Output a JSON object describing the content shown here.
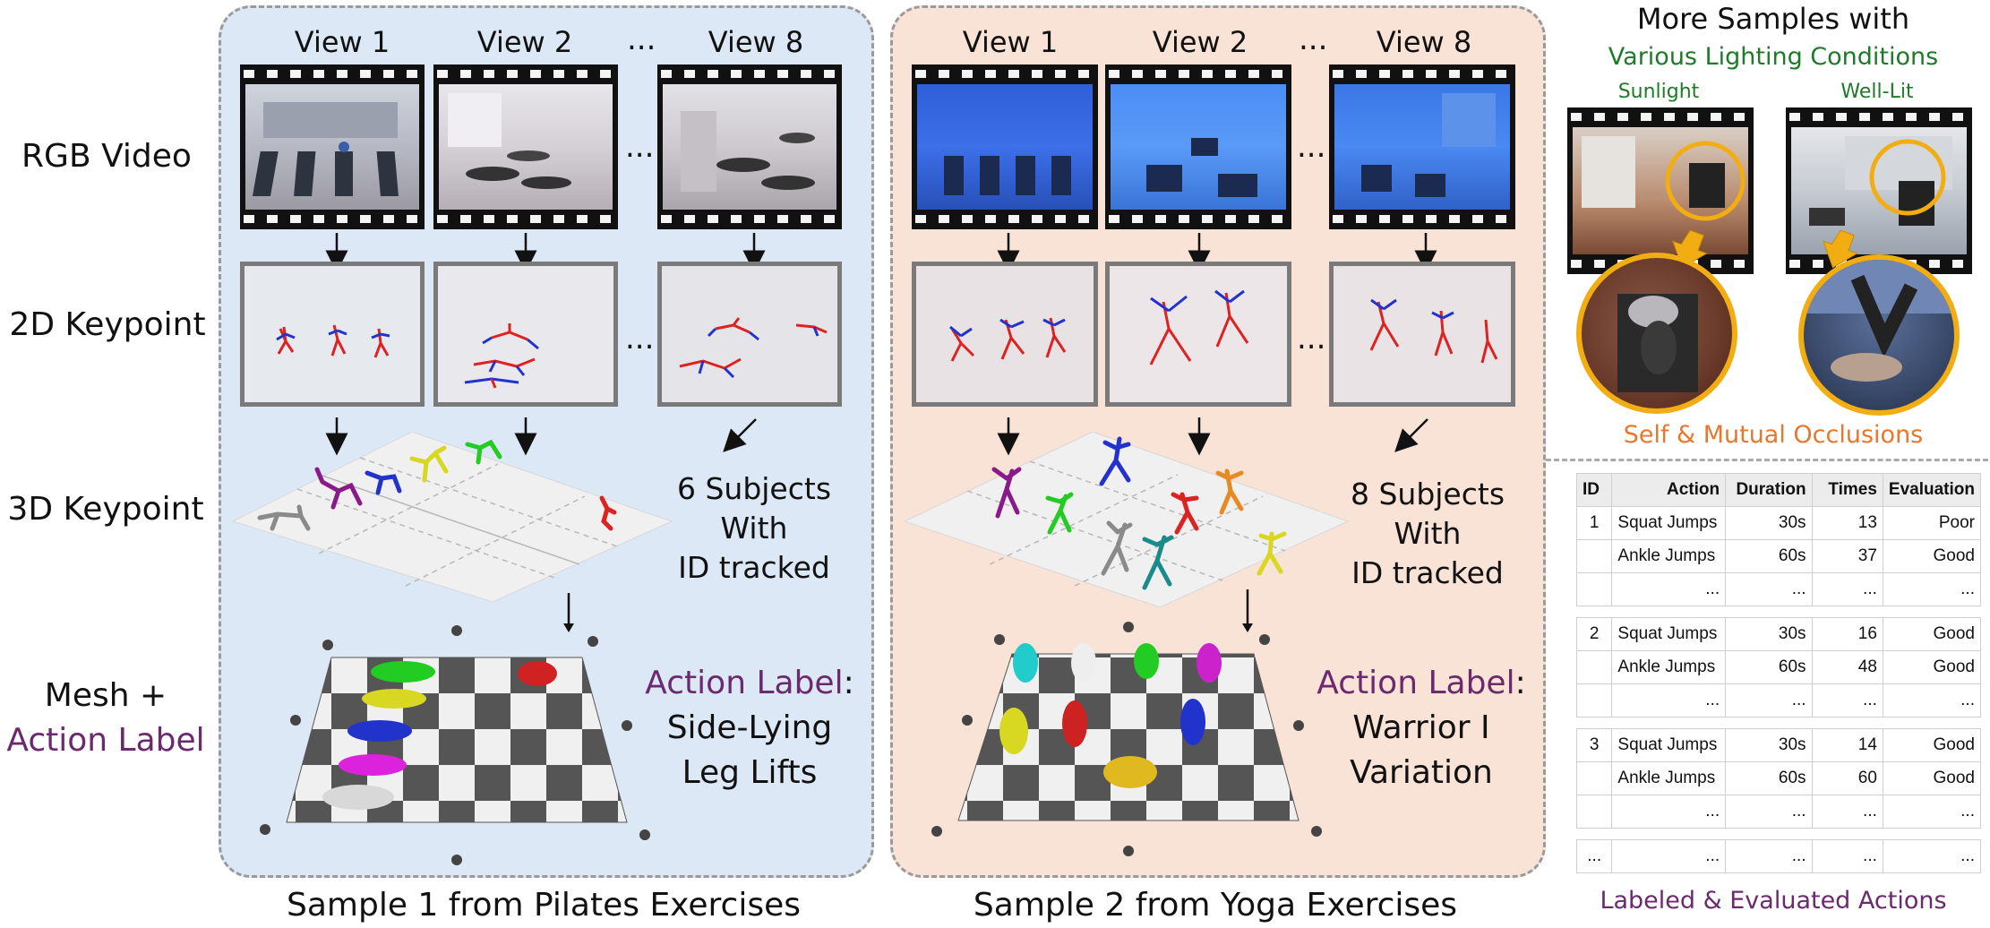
{
  "row_labels": {
    "rgb": "RGB Video",
    "kp2d": "2D Keypoint",
    "kp3d": "3D Keypoint",
    "mesh_line1": "Mesh +",
    "mesh_line2": "Action Label"
  },
  "views": [
    "View 1",
    "View 2",
    "View 8"
  ],
  "ellipsis": "...",
  "sample1": {
    "caption": "Sample 1 from Pilates Exercises",
    "subjects": [
      "6 Subjects",
      "With",
      "ID tracked"
    ],
    "action_label_prefix": "Action Label",
    "action_label_colon": ":",
    "action_line1": "Side-Lying",
    "action_line2": "Leg Lifts"
  },
  "sample2": {
    "caption": "Sample 2 from Yoga Exercises",
    "subjects": [
      "8 Subjects",
      "With",
      "ID tracked"
    ],
    "action_label_prefix": "Action Label",
    "action_label_colon": ":",
    "action_line1": "Warrior I",
    "action_line2": "Variation"
  },
  "more_samples": {
    "title": "More Samples with",
    "subtitle": "Various Lighting Conditions",
    "left_label": "Sunlight",
    "right_label": "Well-Lit",
    "occlusion_caption": "Self & Mutual Occlusions"
  },
  "table": {
    "headers": [
      "ID",
      "Action",
      "Duration",
      "Times",
      "Evaluation"
    ],
    "groups": [
      {
        "rows": [
          [
            "1",
            "Squat Jumps",
            "30s",
            "13",
            "Poor"
          ],
          [
            "",
            "Ankle Jumps",
            "60s",
            "37",
            "Good"
          ],
          [
            "",
            "...",
            "...",
            "...",
            "..."
          ]
        ]
      },
      {
        "rows": [
          [
            "2",
            "Squat Jumps",
            "30s",
            "16",
            "Good"
          ],
          [
            "",
            "Ankle Jumps",
            "60s",
            "48",
            "Good"
          ],
          [
            "",
            "...",
            "...",
            "...",
            "..."
          ]
        ]
      },
      {
        "rows": [
          [
            "3",
            "Squat Jumps",
            "30s",
            "14",
            "Good"
          ],
          [
            "",
            "Ankle Jumps",
            "60s",
            "60",
            "Good"
          ],
          [
            "",
            "...",
            "...",
            "...",
            "..."
          ]
        ]
      },
      {
        "rows": [
          [
            "...",
            "...",
            "...",
            "...",
            "..."
          ]
        ]
      }
    ],
    "caption": "Labeled & Evaluated Actions"
  },
  "colors": {
    "pilates_bg": "#dce8f5",
    "yoga_bg": "#f9e2d6",
    "purple": "#6b2a6e",
    "green": "#1f7a2a",
    "orange": "#e8772e",
    "circle": "#f2ad13"
  }
}
